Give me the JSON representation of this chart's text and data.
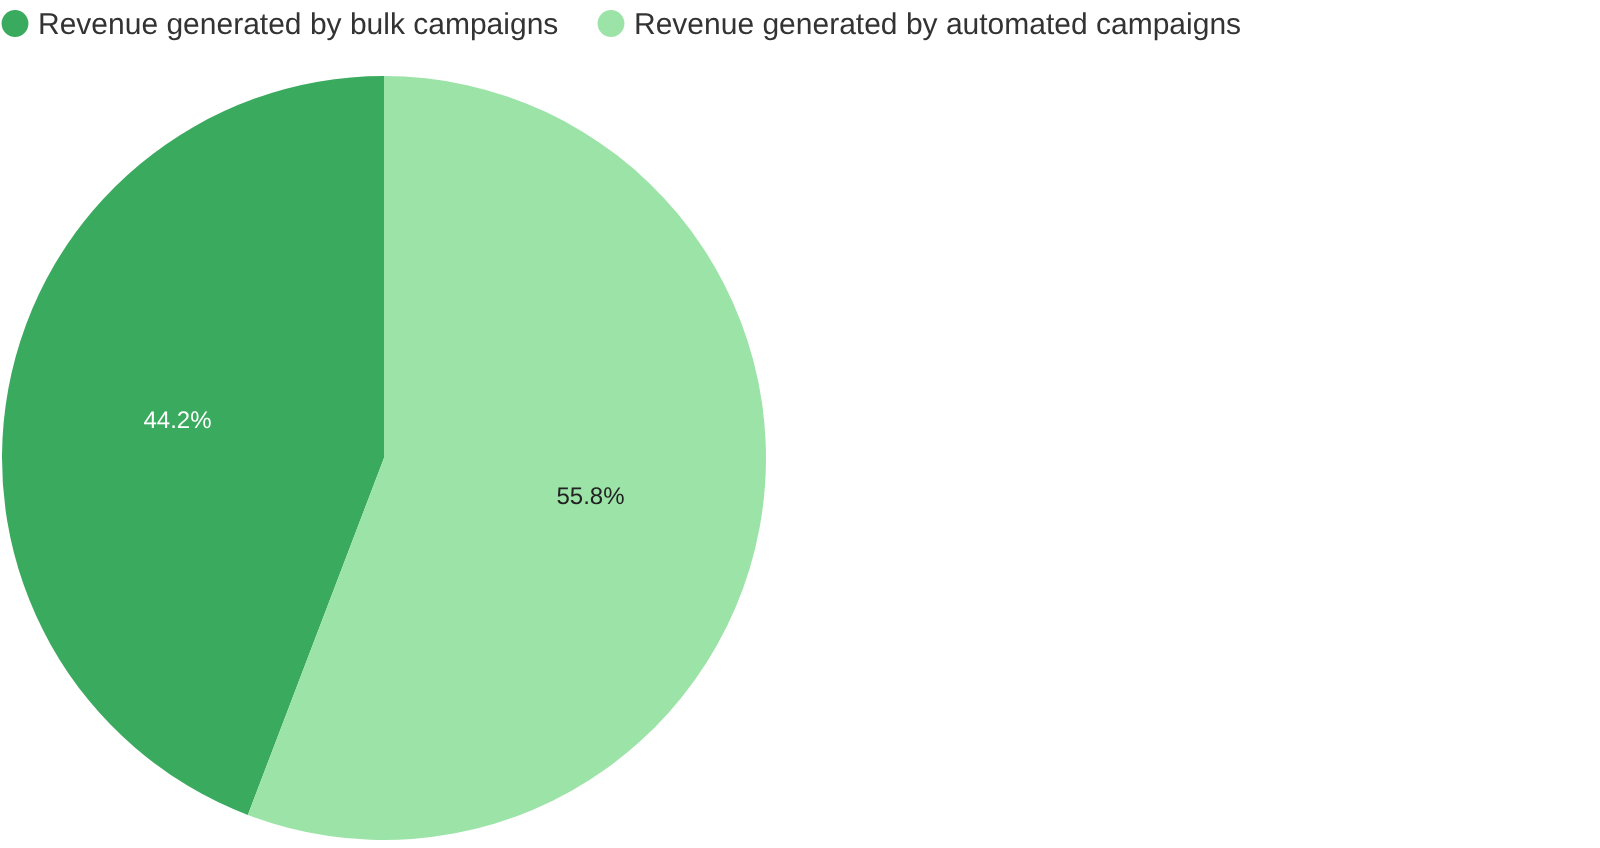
{
  "chart_data": {
    "type": "pie",
    "categories": [
      "Revenue generated by bulk campaigns",
      "Revenue generated by automated campaigns"
    ],
    "values": [
      44.2,
      55.8
    ],
    "colors": [
      "#3aaa5e",
      "#9ce3a8"
    ],
    "value_labels": [
      "44.2%",
      "55.8%"
    ],
    "legend": "top"
  }
}
